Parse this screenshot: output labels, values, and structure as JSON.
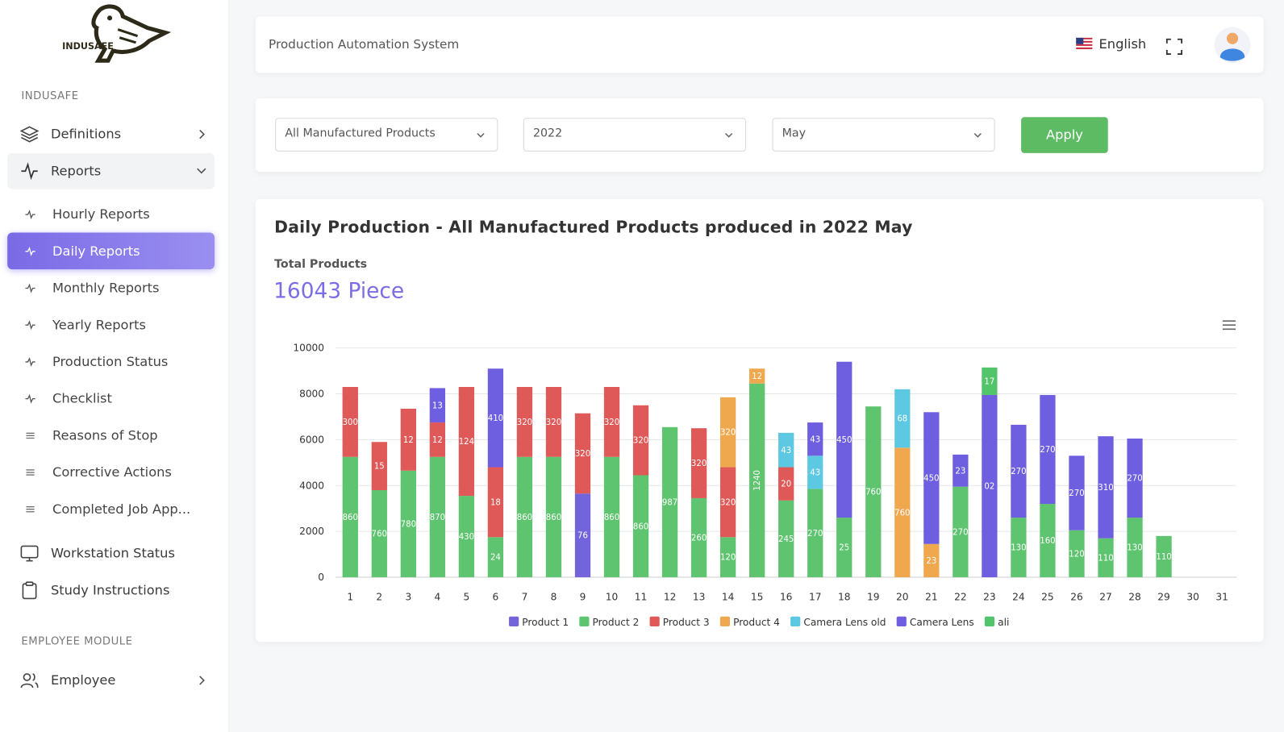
{
  "sidebar": {
    "logo_text": "INDUSAFE",
    "section": "INDUSAFE",
    "definitions": "Definitions",
    "reports": "Reports",
    "sub_items": [
      "Hourly Reports",
      "Daily Reports",
      "Monthly Reports",
      "Yearly Reports",
      "Production Status",
      "Checklist",
      "Reasons of Stop",
      "Corrective Actions",
      "Completed Job App..."
    ],
    "workstation": "Workstation Status",
    "study": "Study Instructions",
    "section2": "EMPLOYEE MODULE",
    "employee": "Employee"
  },
  "header": {
    "title": "Production Automation System",
    "language": "English"
  },
  "filters": {
    "product": "All Manufactured Products",
    "year": "2022",
    "month": "May",
    "apply": "Apply"
  },
  "summary": {
    "total_label": "Total Products",
    "total": "16043 Piece"
  },
  "chart_data": {
    "type": "bar",
    "stacked": true,
    "title": "Daily Production - All Manufactured Products produced in 2022 May",
    "categories": [
      "1",
      "2",
      "3",
      "4",
      "5",
      "6",
      "7",
      "8",
      "9",
      "10",
      "11",
      "12",
      "13",
      "14",
      "15",
      "16",
      "17",
      "18",
      "19",
      "20",
      "21",
      "22",
      "23",
      "24",
      "25",
      "26",
      "27",
      "28",
      "29",
      "30",
      "31"
    ],
    "ylim": [
      0,
      10000
    ],
    "yticks": [
      0,
      2000,
      4000,
      6000,
      8000,
      10000
    ],
    "grid": true,
    "series": [
      {
        "name": "Product 1",
        "color": "#7464dc",
        "values": [
          null,
          null,
          null,
          null,
          null,
          null,
          null,
          null,
          3650,
          null,
          null,
          null,
          null,
          null,
          null,
          null,
          null,
          null,
          null,
          null,
          null,
          null,
          null,
          null,
          null,
          null,
          null,
          null,
          null,
          null,
          null
        ],
        "value_labels": [
          null,
          null,
          null,
          null,
          null,
          null,
          null,
          null,
          "76",
          null,
          null,
          null,
          null,
          null,
          null,
          null,
          null,
          null,
          null,
          null,
          null,
          null,
          null,
          null,
          null,
          null,
          null,
          null,
          null,
          null,
          null
        ]
      },
      {
        "name": "Product 2",
        "color": "#5ec46f",
        "values": [
          5250,
          3800,
          4650,
          5250,
          3550,
          1750,
          5250,
          5250,
          null,
          5250,
          4450,
          6550,
          3450,
          1750,
          8450,
          3350,
          3850,
          2600,
          7450,
          null,
          null,
          3950,
          null,
          2600,
          3200,
          2050,
          1700,
          2600,
          1800,
          null,
          null
        ],
        "value_labels": [
          "860",
          "760",
          "780",
          "870",
          "430",
          "24",
          "860",
          "860",
          null,
          "860",
          "860",
          "987",
          "260",
          "120",
          "1240",
          "245",
          "270",
          "25",
          "760",
          null,
          null,
          "270",
          null,
          "130",
          "160",
          "120",
          "110",
          "130",
          "110",
          null,
          null
        ]
      },
      {
        "name": "Product 3",
        "color": "#de5957",
        "values": [
          3050,
          2100,
          2700,
          1500,
          4750,
          3050,
          3050,
          3050,
          3500,
          3050,
          3050,
          null,
          3050,
          3050,
          null,
          1450,
          null,
          null,
          null,
          null,
          null,
          null,
          null,
          null,
          null,
          null,
          null,
          null,
          null,
          null,
          null
        ],
        "value_labels": [
          "300",
          "15",
          "12",
          "12",
          "124",
          "18",
          "320",
          "320",
          "320",
          "320",
          "320",
          null,
          "320",
          "320",
          null,
          "20",
          null,
          null,
          null,
          null,
          null,
          null,
          null,
          null,
          null,
          null,
          null,
          null,
          null,
          null,
          null
        ]
      },
      {
        "name": "Product 4",
        "color": "#f0a84f",
        "values": [
          null,
          null,
          null,
          null,
          null,
          null,
          null,
          null,
          null,
          null,
          null,
          null,
          null,
          3050,
          650,
          null,
          null,
          null,
          null,
          5650,
          1450,
          null,
          null,
          null,
          null,
          null,
          null,
          null,
          null,
          null,
          null
        ],
        "value_labels": [
          null,
          null,
          null,
          null,
          null,
          null,
          null,
          null,
          null,
          null,
          null,
          null,
          null,
          "320",
          "12",
          null,
          null,
          null,
          null,
          "760",
          "23",
          null,
          null,
          null,
          null,
          null,
          null,
          null,
          null,
          null,
          null
        ]
      },
      {
        "name": "Camera Lens old",
        "color": "#5cc8e2",
        "values": [
          null,
          null,
          null,
          null,
          null,
          null,
          null,
          null,
          null,
          null,
          null,
          null,
          null,
          null,
          null,
          1500,
          1450,
          null,
          null,
          2550,
          null,
          null,
          null,
          null,
          null,
          null,
          null,
          null,
          null,
          null,
          null
        ],
        "value_labels": [
          null,
          null,
          null,
          null,
          null,
          null,
          null,
          null,
          null,
          null,
          null,
          null,
          null,
          null,
          null,
          "43",
          "43",
          null,
          null,
          "68",
          null,
          null,
          null,
          null,
          null,
          null,
          null,
          null,
          null,
          null,
          null
        ]
      },
      {
        "name": "Camera Lens",
        "color": "#6e5fe0",
        "values": [
          null,
          null,
          null,
          1500,
          null,
          4300,
          null,
          null,
          null,
          null,
          null,
          null,
          null,
          null,
          null,
          null,
          1450,
          6800,
          null,
          null,
          5750,
          1400,
          7950,
          4050,
          4750,
          3250,
          4450,
          3450,
          null,
          null,
          null
        ],
        "value_labels": [
          null,
          null,
          null,
          "13",
          null,
          "410",
          null,
          null,
          null,
          null,
          null,
          null,
          null,
          null,
          null,
          null,
          "43",
          "450",
          null,
          null,
          "450",
          "23",
          "02",
          "270",
          "270",
          "270",
          "310",
          "270",
          null,
          null,
          null
        ]
      },
      {
        "name": "ali",
        "color": "#52c46a",
        "values": [
          null,
          null,
          null,
          null,
          null,
          null,
          null,
          null,
          null,
          null,
          null,
          null,
          null,
          null,
          null,
          null,
          null,
          null,
          null,
          null,
          null,
          null,
          1200,
          null,
          null,
          null,
          null,
          null,
          null,
          null,
          null
        ],
        "value_labels": [
          null,
          null,
          null,
          null,
          null,
          null,
          null,
          null,
          null,
          null,
          null,
          null,
          null,
          null,
          null,
          null,
          null,
          null,
          null,
          null,
          null,
          null,
          "17",
          null,
          null,
          null,
          null,
          null,
          null,
          null,
          null
        ]
      }
    ]
  }
}
